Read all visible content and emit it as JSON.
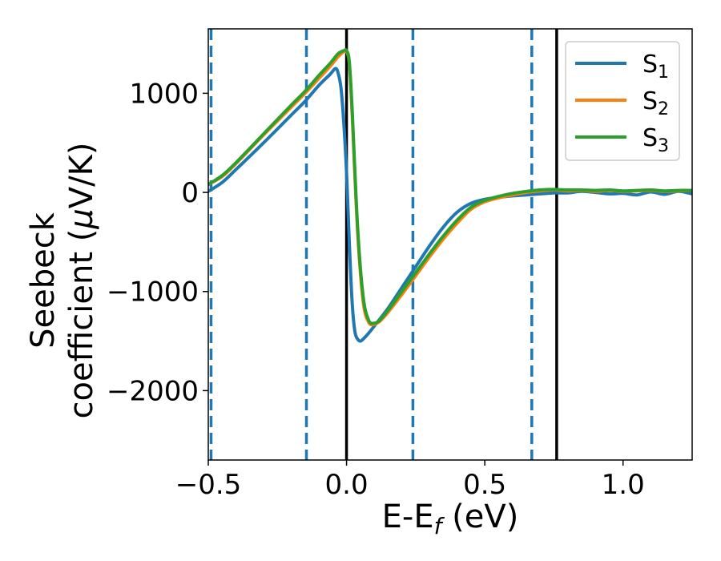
{
  "chart_data": {
    "type": "line",
    "xlabel": {
      "main": "E-E",
      "sub": "f",
      "unit": " (eV)"
    },
    "ylabel": {
      "line1": "Seebeck",
      "line2": "coefficient  (",
      "mu": "μ",
      "line2b": "V/K)"
    },
    "xlim": [
      -0.5,
      1.25
    ],
    "ylim": [
      -2700,
      1650
    ],
    "xticks": [
      -0.5,
      0.0,
      0.5,
      1.0
    ],
    "xtick_labels": [
      "−0.5",
      "0.0",
      "0.5",
      "1.0"
    ],
    "yticks": [
      -2000,
      -1000,
      0,
      1000
    ],
    "ytick_labels": [
      "−2000",
      "−1000",
      "0",
      "1000"
    ],
    "legend_position": "top-right",
    "grid": false,
    "vlines_solid": [
      0.0,
      0.76
    ],
    "vlines_dashed": [
      -0.49,
      -0.145,
      0.24,
      0.67
    ],
    "vline_solid_color": "#000000",
    "vline_dashed_color": "#1f77b4",
    "series": [
      {
        "name": "S",
        "sub": "1",
        "color": "#1f77b4",
        "x": [
          -0.5,
          -0.45,
          -0.4,
          -0.3,
          -0.2,
          -0.15,
          -0.1,
          -0.06,
          -0.04,
          -0.03,
          -0.02,
          -0.01,
          0.0,
          0.01,
          0.02,
          0.03,
          0.04,
          0.05,
          0.06,
          0.08,
          0.1,
          0.15,
          0.2,
          0.25,
          0.3,
          0.35,
          0.4,
          0.45,
          0.5,
          0.55,
          0.6,
          0.65,
          0.7,
          0.75,
          0.8,
          0.85,
          0.9,
          0.95,
          1.0,
          1.05,
          1.1,
          1.15,
          1.2,
          1.25
        ],
        "y": [
          10,
          100,
          230,
          500,
          780,
          920,
          1080,
          1190,
          1250,
          1200,
          1050,
          700,
          200,
          -500,
          -1100,
          -1400,
          -1480,
          -1500,
          -1480,
          -1420,
          -1350,
          -1170,
          -960,
          -750,
          -540,
          -350,
          -200,
          -110,
          -70,
          -50,
          -35,
          -25,
          -15,
          -5,
          -5,
          10,
          0,
          -15,
          -10,
          -25,
          5,
          -20,
          10,
          -15
        ]
      },
      {
        "name": "S",
        "sub": "2",
        "color": "#ff7f0e",
        "x": [
          -0.5,
          -0.45,
          -0.4,
          -0.3,
          -0.2,
          -0.15,
          -0.1,
          -0.06,
          -0.03,
          -0.01,
          0.0,
          0.01,
          0.02,
          0.04,
          0.06,
          0.08,
          0.1,
          0.12,
          0.15,
          0.2,
          0.25,
          0.3,
          0.35,
          0.4,
          0.45,
          0.5,
          0.55,
          0.6,
          0.65,
          0.7,
          0.75,
          0.8,
          0.85,
          0.9,
          0.95,
          1.0,
          1.05,
          1.1,
          1.15,
          1.2,
          1.25
        ],
        "y": [
          80,
          160,
          290,
          580,
          860,
          1000,
          1150,
          1270,
          1370,
          1420,
          1420,
          1300,
          800,
          -400,
          -1100,
          -1310,
          -1330,
          -1300,
          -1210,
          -1030,
          -840,
          -650,
          -470,
          -310,
          -170,
          -95,
          -55,
          -25,
          0,
          15,
          25,
          15,
          20,
          10,
          20,
          10,
          15,
          20,
          10,
          15,
          20
        ]
      },
      {
        "name": "S",
        "sub": "3",
        "color": "#2ca02c",
        "x": [
          -0.5,
          -0.45,
          -0.4,
          -0.3,
          -0.2,
          -0.15,
          -0.1,
          -0.06,
          -0.03,
          -0.01,
          0.0,
          0.01,
          0.02,
          0.04,
          0.06,
          0.08,
          0.1,
          0.12,
          0.15,
          0.2,
          0.25,
          0.3,
          0.35,
          0.4,
          0.45,
          0.5,
          0.55,
          0.6,
          0.65,
          0.7,
          0.75,
          0.8,
          0.85,
          0.9,
          0.95,
          1.0,
          1.05,
          1.1,
          1.15,
          1.2,
          1.25
        ],
        "y": [
          80,
          170,
          300,
          590,
          880,
          1020,
          1180,
          1300,
          1400,
          1430,
          1430,
          1320,
          850,
          -350,
          -1050,
          -1290,
          -1320,
          -1290,
          -1190,
          -1000,
          -810,
          -620,
          -440,
          -280,
          -150,
          -80,
          -40,
          -10,
          10,
          25,
          30,
          25,
          25,
          20,
          25,
          15,
          20,
          25,
          15,
          20,
          20
        ]
      }
    ]
  }
}
